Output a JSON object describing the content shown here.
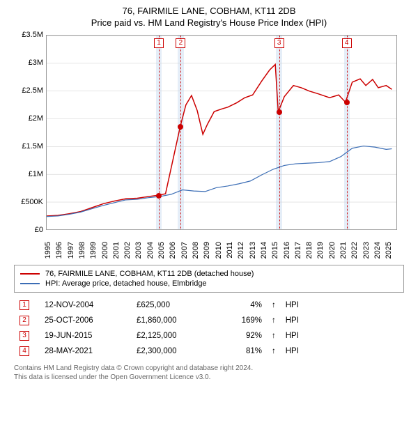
{
  "title_line1": "76, FAIRMILE LANE, COBHAM, KT11 2DB",
  "title_line2": "Price paid vs. HM Land Registry's House Price Index (HPI)",
  "chart": {
    "type": "line",
    "background_color": "#ffffff",
    "grid_color": "#999999",
    "ylim": [
      0,
      3500000
    ],
    "y_ticks": [
      0,
      500000,
      1000000,
      1500000,
      2000000,
      2500000,
      3000000,
      3500000
    ],
    "y_tick_labels": [
      "£0",
      "£500K",
      "£1M",
      "£1.5M",
      "£2M",
      "£2.5M",
      "£3M",
      "£3.5M"
    ],
    "xlim": [
      1995,
      2025.9
    ],
    "x_ticks": [
      1995,
      1996,
      1997,
      1998,
      1999,
      2000,
      2001,
      2002,
      2003,
      2004,
      2005,
      2006,
      2007,
      2008,
      2009,
      2010,
      2011,
      2012,
      2013,
      2014,
      2015,
      2016,
      2017,
      2018,
      2019,
      2020,
      2021,
      2022,
      2023,
      2024,
      2025
    ],
    "label_fontsize": 11,
    "series": [
      {
        "name": "property",
        "label": "76, FAIRMILE LANE, COBHAM, KT11 2DB (detached house)",
        "color": "#cc0000",
        "line_width": 1.5,
        "data": [
          [
            1995.0,
            250000
          ],
          [
            1996.0,
            260000
          ],
          [
            1997.0,
            290000
          ],
          [
            1998.0,
            330000
          ],
          [
            1999.0,
            400000
          ],
          [
            2000.0,
            470000
          ],
          [
            2001.0,
            520000
          ],
          [
            2002.0,
            560000
          ],
          [
            2003.0,
            570000
          ],
          [
            2004.0,
            600000
          ],
          [
            2004.87,
            625000
          ],
          [
            2005.5,
            650000
          ],
          [
            2006.8,
            1860000
          ],
          [
            2007.3,
            2250000
          ],
          [
            2007.8,
            2420000
          ],
          [
            2008.3,
            2150000
          ],
          [
            2008.8,
            1720000
          ],
          [
            2009.2,
            1900000
          ],
          [
            2009.8,
            2130000
          ],
          [
            2010.5,
            2180000
          ],
          [
            2011.0,
            2210000
          ],
          [
            2011.8,
            2290000
          ],
          [
            2012.5,
            2380000
          ],
          [
            2013.2,
            2430000
          ],
          [
            2014.0,
            2680000
          ],
          [
            2014.7,
            2880000
          ],
          [
            2015.2,
            2980000
          ],
          [
            2015.46,
            2125000
          ],
          [
            2016.0,
            2400000
          ],
          [
            2016.8,
            2600000
          ],
          [
            2017.5,
            2560000
          ],
          [
            2018.2,
            2500000
          ],
          [
            2019.0,
            2450000
          ],
          [
            2020.0,
            2380000
          ],
          [
            2020.8,
            2430000
          ],
          [
            2021.4,
            2300000
          ],
          [
            2022.0,
            2660000
          ],
          [
            2022.7,
            2720000
          ],
          [
            2023.2,
            2600000
          ],
          [
            2023.8,
            2710000
          ],
          [
            2024.3,
            2560000
          ],
          [
            2025.0,
            2600000
          ],
          [
            2025.5,
            2530000
          ]
        ]
      },
      {
        "name": "hpi",
        "label": "HPI: Average price, detached house, Elmbridge",
        "color": "#3b6db5",
        "line_width": 1.2,
        "data": [
          [
            1995.0,
            240000
          ],
          [
            1996.0,
            250000
          ],
          [
            1997.0,
            280000
          ],
          [
            1998.0,
            320000
          ],
          [
            1999.0,
            380000
          ],
          [
            2000.0,
            440000
          ],
          [
            2001.0,
            490000
          ],
          [
            2002.0,
            540000
          ],
          [
            2003.0,
            550000
          ],
          [
            2004.0,
            580000
          ],
          [
            2005.0,
            600000
          ],
          [
            2006.0,
            640000
          ],
          [
            2007.0,
            720000
          ],
          [
            2008.0,
            700000
          ],
          [
            2009.0,
            690000
          ],
          [
            2010.0,
            760000
          ],
          [
            2011.0,
            790000
          ],
          [
            2012.0,
            830000
          ],
          [
            2013.0,
            880000
          ],
          [
            2014.0,
            990000
          ],
          [
            2015.0,
            1090000
          ],
          [
            2016.0,
            1160000
          ],
          [
            2017.0,
            1190000
          ],
          [
            2018.0,
            1200000
          ],
          [
            2019.0,
            1210000
          ],
          [
            2020.0,
            1230000
          ],
          [
            2021.0,
            1320000
          ],
          [
            2022.0,
            1470000
          ],
          [
            2023.0,
            1510000
          ],
          [
            2024.0,
            1490000
          ],
          [
            2025.0,
            1450000
          ],
          [
            2025.5,
            1460000
          ]
        ]
      }
    ],
    "bands_color": "#d4e2f4",
    "bands": [
      {
        "start": 2004.6,
        "end": 2005.1
      },
      {
        "start": 2006.55,
        "end": 2007.05
      },
      {
        "start": 2015.2,
        "end": 2015.7
      },
      {
        "start": 2021.15,
        "end": 2021.65
      }
    ],
    "sale_markers": [
      {
        "num": "1",
        "year": 2004.87,
        "price": 625000
      },
      {
        "num": "2",
        "year": 2006.8,
        "price": 1860000
      },
      {
        "num": "3",
        "year": 2015.46,
        "price": 2125000
      },
      {
        "num": "4",
        "year": 2021.4,
        "price": 2300000
      }
    ],
    "marker_box_color": "#cc0000",
    "dot_color": "#cc0000"
  },
  "legend": {
    "items": [
      {
        "color": "#cc0000",
        "label": "76, FAIRMILE LANE, COBHAM, KT11 2DB (detached house)"
      },
      {
        "color": "#3b6db5",
        "label": "HPI: Average price, detached house, Elmbridge"
      }
    ]
  },
  "sales_table": {
    "rows": [
      {
        "num": "1",
        "date": "12-NOV-2004",
        "price": "£625,000",
        "pct": "4%",
        "arrow": "↑",
        "note": "HPI"
      },
      {
        "num": "2",
        "date": "25-OCT-2006",
        "price": "£1,860,000",
        "pct": "169%",
        "arrow": "↑",
        "note": "HPI"
      },
      {
        "num": "3",
        "date": "19-JUN-2015",
        "price": "£2,125,000",
        "pct": "92%",
        "arrow": "↑",
        "note": "HPI"
      },
      {
        "num": "4",
        "date": "28-MAY-2021",
        "price": "£2,300,000",
        "pct": "81%",
        "arrow": "↑",
        "note": "HPI"
      }
    ]
  },
  "footnote_line1": "Contains HM Land Registry data © Crown copyright and database right 2024.",
  "footnote_line2": "This data is licensed under the Open Government Licence v3.0."
}
